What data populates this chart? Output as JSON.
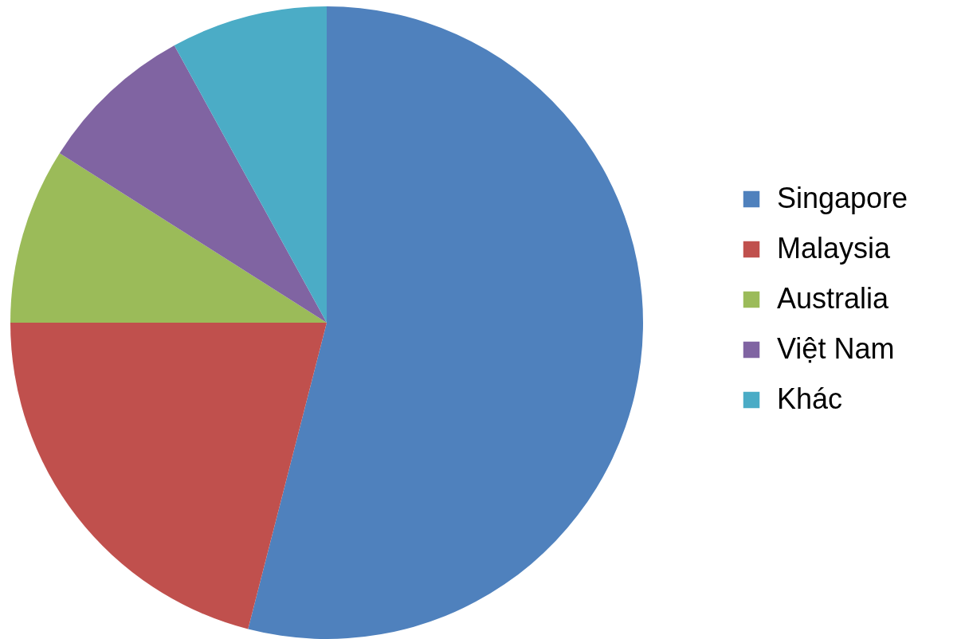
{
  "chart_data": {
    "type": "pie",
    "categories": [
      "Singapore",
      "Malaysia",
      "Australia",
      "Việt Nam",
      "Khác"
    ],
    "values": [
      54,
      21,
      9,
      8,
      8
    ],
    "colors": [
      "#4f81bd",
      "#c0504d",
      "#9bbb59",
      "#8064a2",
      "#4bacc6"
    ],
    "legend": "right"
  }
}
